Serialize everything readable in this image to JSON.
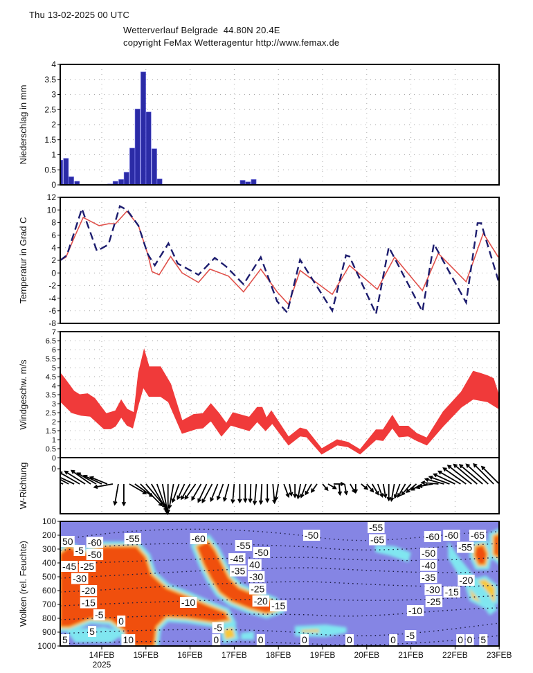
{
  "header": {
    "run": "Thu 13-02-2025 00 UTC",
    "title": "Wetterverlauf Belgrade  44.80N 20.4E",
    "copyright": "copyright FeMax Wetteragentur http://www.femax.de"
  },
  "colors": {
    "precip_bar": "#2b2ba6",
    "temp_t2m": "#e0504a",
    "temp_dashed": "#1c1c6e",
    "wind_band": "#f03a3a",
    "cloud_background": "#8585e4",
    "cloud_dense": "#f05010",
    "cloud_mid": "#f8c838",
    "cloud_thin": "#80e6f0"
  },
  "chart_data": [
    {
      "type": "bar",
      "id": "precip",
      "ylabel": "Niederschlag in mm",
      "ylim": [
        0,
        4
      ],
      "yticks": [
        "0",
        "0.5",
        "1",
        "1.5",
        "2",
        "2.5",
        "3",
        "3.5",
        "4"
      ],
      "x_unit": "day of Feb 2025",
      "xlim": [
        13.06,
        23.0
      ],
      "bars": [
        [
          13.06,
          0.82
        ],
        [
          13.19,
          0.88
        ],
        [
          13.31,
          0.27
        ],
        [
          13.44,
          0.12
        ],
        [
          14.19,
          0.03
        ],
        [
          14.31,
          0.12
        ],
        [
          14.44,
          0.18
        ],
        [
          14.56,
          0.42
        ],
        [
          14.69,
          1.22
        ],
        [
          14.81,
          2.52
        ],
        [
          14.94,
          3.75
        ],
        [
          15.06,
          2.42
        ],
        [
          15.19,
          1.2
        ],
        [
          15.31,
          0.2
        ],
        [
          17.19,
          0.15
        ],
        [
          17.31,
          0.1
        ],
        [
          17.44,
          0.18
        ]
      ]
    },
    {
      "type": "line",
      "id": "temperature",
      "ylabel": "Temperatur in Grad C",
      "ylim": [
        -8,
        12
      ],
      "yticks": [
        "-8",
        "-6",
        "-4",
        "-2",
        "0",
        "2",
        "4",
        "6",
        "8",
        "10",
        "12"
      ],
      "series": [
        {
          "name": "solid",
          "style": "solid",
          "points": [
            [
              13.06,
              2.0
            ],
            [
              13.19,
              2.5
            ],
            [
              13.37,
              5.5
            ],
            [
              13.58,
              8.8
            ],
            [
              13.94,
              7.5
            ],
            [
              14.15,
              7.8
            ],
            [
              14.31,
              7.8
            ],
            [
              14.57,
              9.8
            ],
            [
              14.83,
              7.5
            ],
            [
              15.04,
              3
            ],
            [
              15.14,
              0.2
            ],
            [
              15.3,
              -0.3
            ],
            [
              15.56,
              2.6
            ],
            [
              15.82,
              0
            ],
            [
              16.19,
              -1.5
            ],
            [
              16.45,
              0.6
            ],
            [
              16.87,
              -0.5
            ],
            [
              17.21,
              -3
            ],
            [
              17.6,
              0.6
            ],
            [
              17.97,
              -3
            ],
            [
              18.23,
              -5.0
            ],
            [
              18.49,
              0.4
            ],
            [
              19.22,
              -3.4
            ],
            [
              19.61,
              1.2
            ],
            [
              20.24,
              -2.6
            ],
            [
              20.63,
              2.5
            ],
            [
              21.26,
              -2.8
            ],
            [
              21.62,
              3.1
            ],
            [
              22.25,
              -1.4
            ],
            [
              22.64,
              6.3
            ],
            [
              22.98,
              2.5
            ]
          ]
        },
        {
          "name": "dashed",
          "style": "dashed",
          "points": [
            [
              13.06,
              2
            ],
            [
              13.21,
              2.8
            ],
            [
              13.55,
              10.2
            ],
            [
              13.89,
              3.5
            ],
            [
              14.15,
              4.5
            ],
            [
              14.41,
              10.6
            ],
            [
              14.57,
              10
            ],
            [
              14.83,
              7.5
            ],
            [
              15.04,
              3
            ],
            [
              15.2,
              1.2
            ],
            [
              15.51,
              4.7
            ],
            [
              15.72,
              1.5
            ],
            [
              16.19,
              -0.3
            ],
            [
              16.56,
              2.4
            ],
            [
              16.82,
              1
            ],
            [
              17.21,
              -1.8
            ],
            [
              17.6,
              2.5
            ],
            [
              17.97,
              -4.5
            ],
            [
              18.2,
              -6.3
            ],
            [
              18.49,
              2.1
            ],
            [
              19.22,
              -6
            ],
            [
              19.53,
              2.8
            ],
            [
              19.61,
              2.6
            ],
            [
              20.21,
              -6.5
            ],
            [
              20.5,
              4.1
            ],
            [
              21.26,
              -6.1
            ],
            [
              21.52,
              4.6
            ],
            [
              22.25,
              -4.7
            ],
            [
              22.51,
              7.9
            ],
            [
              22.59,
              7.9
            ],
            [
              22.98,
              -1.2
            ]
          ]
        }
      ]
    },
    {
      "type": "area",
      "id": "wind_speed",
      "ylabel": "Windgeschw. m/s",
      "ylim": [
        0,
        7
      ],
      "yticks": [
        "0",
        "0.5",
        "1",
        "1.5",
        "2",
        "2.5",
        "3",
        "3.5",
        "4",
        "4.5",
        "5",
        "5.5",
        "6",
        "6.5",
        "7"
      ],
      "upper": [
        [
          13.05,
          4.74
        ],
        [
          13.16,
          4.4
        ],
        [
          13.37,
          3.7
        ],
        [
          13.5,
          3.5
        ],
        [
          13.68,
          3.55
        ],
        [
          13.84,
          3.3
        ],
        [
          14.1,
          2.45
        ],
        [
          14.31,
          2.6
        ],
        [
          14.44,
          3.2
        ],
        [
          14.57,
          2.7
        ],
        [
          14.73,
          2.5
        ],
        [
          14.83,
          4.7
        ],
        [
          14.96,
          6.0
        ],
        [
          15.07,
          5.05
        ],
        [
          15.33,
          5.05
        ],
        [
          15.56,
          4.1
        ],
        [
          15.82,
          2.05
        ],
        [
          16.08,
          2.4
        ],
        [
          16.29,
          2.45
        ],
        [
          16.47,
          3.0
        ],
        [
          16.66,
          2.45
        ],
        [
          16.82,
          1.9
        ],
        [
          16.97,
          2.5
        ],
        [
          17.34,
          2.25
        ],
        [
          17.52,
          2.8
        ],
        [
          17.63,
          2.8
        ],
        [
          17.73,
          2.2
        ],
        [
          17.84,
          2.6
        ],
        [
          18.23,
          1.15
        ],
        [
          18.49,
          1.65
        ],
        [
          18.64,
          1.55
        ],
        [
          18.98,
          0.5
        ],
        [
          19.33,
          1.0
        ],
        [
          19.58,
          0.85
        ],
        [
          19.85,
          0.45
        ],
        [
          20.21,
          1.55
        ],
        [
          20.37,
          1.55
        ],
        [
          20.58,
          2.35
        ],
        [
          20.73,
          1.75
        ],
        [
          20.94,
          1.75
        ],
        [
          21.13,
          1.35
        ],
        [
          21.36,
          1.1
        ],
        [
          21.73,
          2.55
        ],
        [
          22.14,
          3.65
        ],
        [
          22.41,
          4.8
        ],
        [
          22.56,
          4.7
        ],
        [
          22.74,
          4.55
        ],
        [
          22.87,
          4.4
        ],
        [
          23.0,
          3.4
        ]
      ],
      "lower": [
        [
          13.05,
          3.15
        ],
        [
          13.32,
          2.5
        ],
        [
          13.53,
          2.35
        ],
        [
          13.74,
          2.3
        ],
        [
          14.05,
          1.6
        ],
        [
          14.2,
          1.6
        ],
        [
          14.31,
          1.75
        ],
        [
          14.44,
          2.25
        ],
        [
          14.57,
          1.8
        ],
        [
          14.7,
          1.65
        ],
        [
          14.83,
          2.95
        ],
        [
          14.94,
          3.9
        ],
        [
          15.07,
          3.4
        ],
        [
          15.33,
          3.4
        ],
        [
          15.51,
          3.1
        ],
        [
          15.82,
          1.35
        ],
        [
          16.14,
          1.6
        ],
        [
          16.29,
          1.65
        ],
        [
          16.47,
          2.05
        ],
        [
          16.71,
          1.2
        ],
        [
          16.92,
          1.8
        ],
        [
          17.34,
          1.5
        ],
        [
          17.52,
          2.0
        ],
        [
          17.71,
          1.5
        ],
        [
          17.86,
          1.9
        ],
        [
          18.23,
          0.7
        ],
        [
          18.49,
          1.2
        ],
        [
          18.64,
          1.15
        ],
        [
          18.98,
          0.2
        ],
        [
          19.33,
          0.7
        ],
        [
          19.58,
          0.6
        ],
        [
          19.85,
          0.2
        ],
        [
          20.21,
          1.0
        ],
        [
          20.37,
          0.95
        ],
        [
          20.58,
          1.65
        ],
        [
          20.73,
          1.15
        ],
        [
          20.94,
          1.2
        ],
        [
          21.13,
          0.95
        ],
        [
          21.36,
          0.7
        ],
        [
          21.73,
          1.75
        ],
        [
          22.14,
          2.8
        ],
        [
          22.41,
          3.25
        ],
        [
          22.74,
          3.1
        ],
        [
          23.0,
          2.7
        ]
      ]
    },
    {
      "type": "vector",
      "id": "wind_direction",
      "ylabel": "W-Richtung",
      "yticks": [
        "0"
      ],
      "t_start": 13.125,
      "t_step": 0.125,
      "direction_from_deg": [
        112,
        118,
        115,
        120,
        122,
        125,
        120,
        115,
        112,
        80,
        10,
        0,
        300,
        305,
        315,
        320,
        330,
        340,
        350,
        0,
        10,
        20,
        25,
        30,
        35,
        30,
        25,
        28,
        22,
        20,
        15,
        5,
        0,
        0,
        2,
        5,
        3,
        0,
        355,
        10,
        340,
        350,
        0,
        10,
        20,
        30,
        35,
        320,
        300,
        270,
        355,
        350,
        330,
        0,
        310,
        320,
        330,
        340,
        350,
        0,
        10,
        20,
        30,
        40,
        50,
        60,
        70,
        80,
        95,
        105,
        110,
        115,
        120,
        125,
        128,
        130,
        130,
        132,
        135,
        135
      ]
    },
    {
      "type": "heatmap",
      "id": "clouds",
      "ylabel": "Wolken (rel. Feuchte)",
      "ylim": [
        1000,
        100
      ],
      "yticks": [
        "100",
        "200",
        "300",
        "400",
        "500",
        "600",
        "700",
        "800",
        "900",
        "1000"
      ],
      "contour_labels": [
        {
          "text": "50",
          "t": 13.15,
          "p": 245
        },
        {
          "text": "-60",
          "t": 13.84,
          "p": 252
        },
        {
          "text": "-5",
          "t": 13.47,
          "p": 310
        },
        {
          "text": "-50",
          "t": 13.81,
          "p": 325
        },
        {
          "text": "-55",
          "t": 14.7,
          "p": 225
        },
        {
          "text": "-45",
          "t": 13.23,
          "p": 425
        },
        {
          "text": "-30",
          "t": 13.5,
          "p": 470
        },
        {
          "text": "-25",
          "t": 13.61,
          "p": 510
        },
        {
          "text": "-20",
          "t": 13.7,
          "p": 560
        },
        {
          "text": "-15",
          "t": 13.7,
          "p": 625
        },
        {
          "text": "-5",
          "t": 13.94,
          "p": 745
        },
        {
          "text": "0",
          "t": 14.44,
          "p": 820
        },
        {
          "text": "5",
          "t": 13.78,
          "p": 895
        },
        {
          "text": "5",
          "t": 13.14,
          "p": 970
        },
        {
          "text": "10",
          "t": 14.6,
          "p": 985
        },
        {
          "text": "-10",
          "t": 15.96,
          "p": 685
        },
        {
          "text": "-60",
          "t": 16.19,
          "p": 225
        },
        {
          "text": "-55",
          "t": 17.21,
          "p": 275
        },
        {
          "text": "-50",
          "t": 17.53,
          "p": 325
        },
        {
          "text": "-45",
          "t": 17.06,
          "p": 370
        },
        {
          "text": "40",
          "t": 17.46,
          "p": 395
        },
        {
          "text": "-35",
          "t": 17.1,
          "p": 435
        },
        {
          "text": "-30",
          "t": 17.37,
          "p": 475
        },
        {
          "text": "-25",
          "t": 17.53,
          "p": 545
        },
        {
          "text": "-20",
          "t": 17.6,
          "p": 620
        },
        {
          "text": "-15",
          "t": 18.0,
          "p": 710
        },
        {
          "text": "-5",
          "t": 16.63,
          "p": 925
        },
        {
          "text": "0",
          "t": 16.59,
          "p": 985
        },
        {
          "text": "0",
          "t": 17.6,
          "p": 985
        },
        {
          "text": "-55",
          "t": 20.21,
          "p": 110
        },
        {
          "text": "-50",
          "t": 18.75,
          "p": 200
        },
        {
          "text": "-65",
          "t": 20.24,
          "p": 220
        },
        {
          "text": "-60",
          "t": 21.49,
          "p": 210
        },
        {
          "text": "-65",
          "t": 22.51,
          "p": 200
        },
        {
          "text": "-55",
          "t": 22.23,
          "p": 275
        },
        {
          "text": "-60",
          "t": 21.92,
          "p": 225
        },
        {
          "text": "-50",
          "t": 21.4,
          "p": 330
        },
        {
          "text": "-40",
          "t": 21.4,
          "p": 390
        },
        {
          "text": "-35",
          "t": 21.4,
          "p": 440
        },
        {
          "text": "-30",
          "t": 21.5,
          "p": 470
        },
        {
          "text": "-25",
          "t": 21.52,
          "p": 510
        },
        {
          "text": "-20",
          "t": 22.25,
          "p": 525
        },
        {
          "text": "-15",
          "t": 21.76,
          "p": 610
        },
        {
          "text": "-10",
          "t": 21.1,
          "p": 745
        },
        {
          "text": "-5",
          "t": 20.99,
          "p": 925
        },
        {
          "text": "0",
          "t": 18.59,
          "p": 975
        },
        {
          "text": "0",
          "t": 19.61,
          "p": 975
        },
        {
          "text": "0",
          "t": 20.6,
          "p": 975
        },
        {
          "text": "0",
          "t": 22.12,
          "p": 975
        },
        {
          "text": "0",
          "t": 22.25,
          "p": 975
        },
        {
          "text": "5",
          "t": 22.64,
          "p": 975
        }
      ]
    }
  ],
  "xaxis": {
    "labels": [
      {
        "t": 14,
        "text": "14FEB"
      },
      {
        "t": 15,
        "text": "15FEB"
      },
      {
        "t": 16,
        "text": "16FEB"
      },
      {
        "t": 17,
        "text": "17FEB"
      },
      {
        "t": 18,
        "text": "18FEB"
      },
      {
        "t": 19,
        "text": "19FEB"
      },
      {
        "t": 20,
        "text": "20FEB"
      },
      {
        "t": 21,
        "text": "21FEB"
      },
      {
        "t": 22,
        "text": "22FEB"
      },
      {
        "t": 23,
        "text": "23FEB"
      }
    ],
    "year": "2025"
  }
}
